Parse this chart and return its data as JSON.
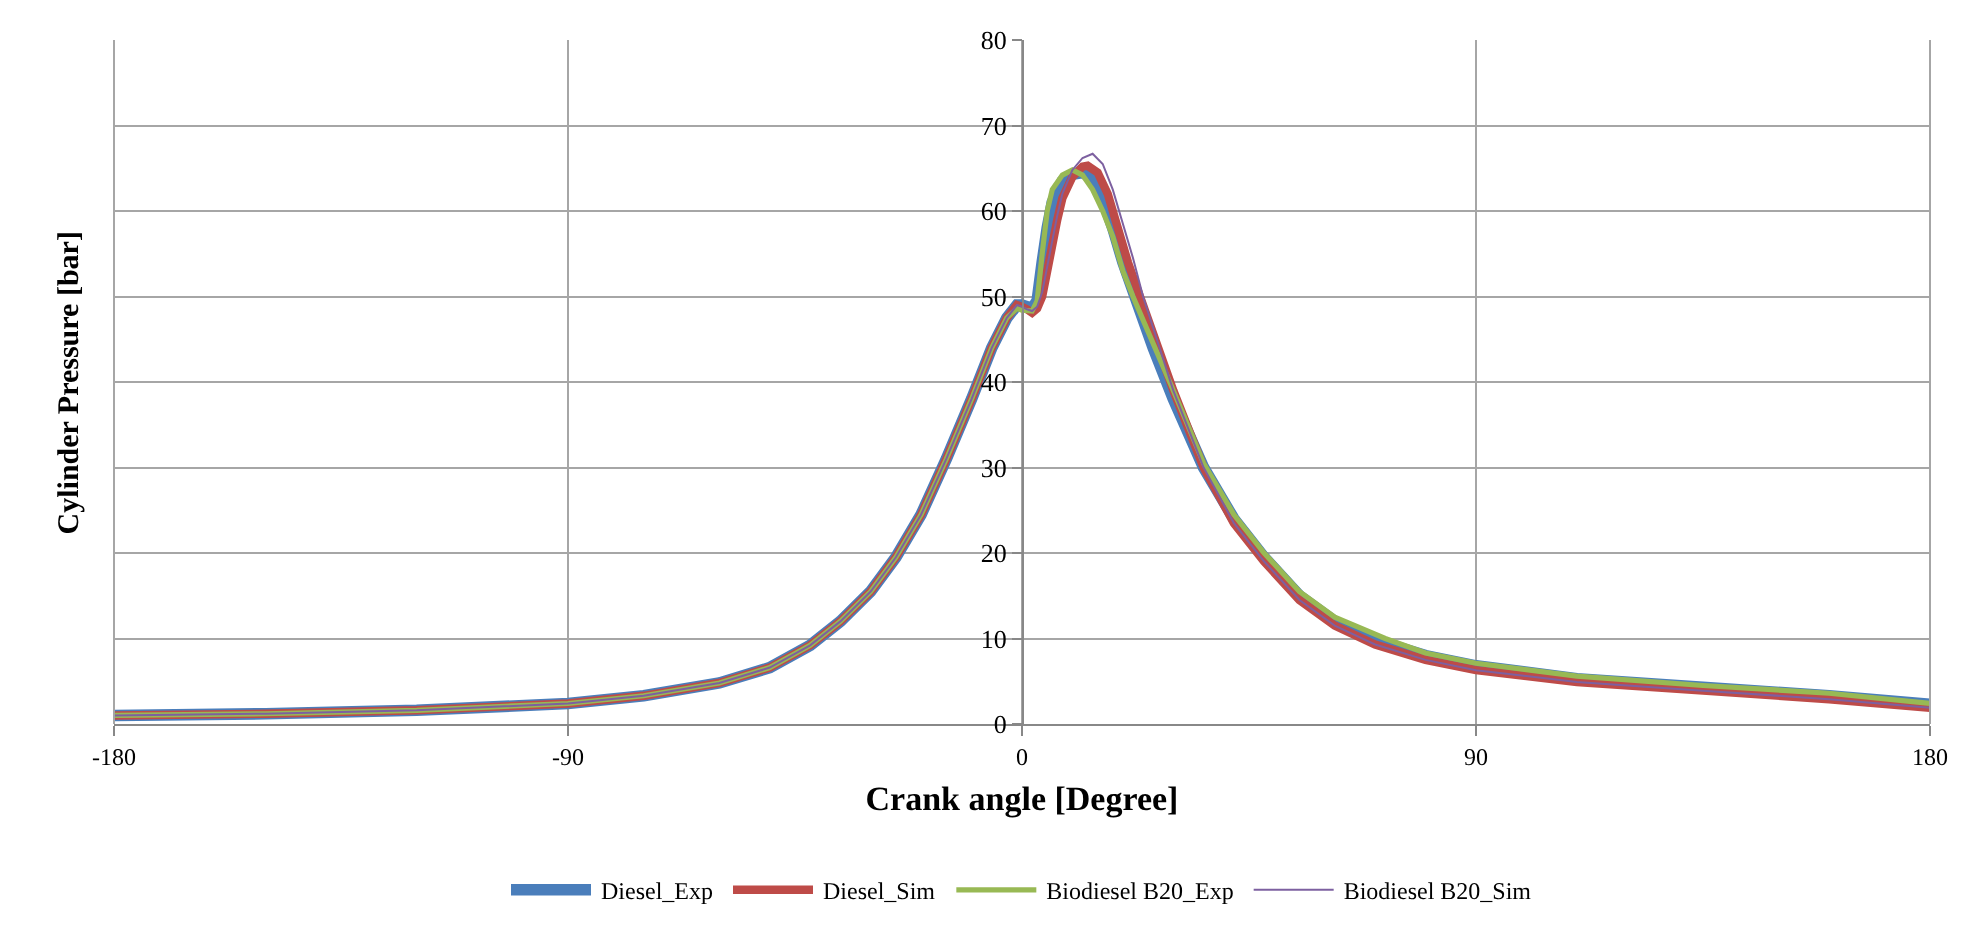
{
  "chart_data": {
    "type": "line",
    "xlabel": "Crank angle [Degree]",
    "ylabel": "Cylinder Pressure [bar]",
    "xlim": [
      -180,
      180
    ],
    "xticks": [
      -180,
      -90,
      0,
      90,
      180
    ],
    "ylim": [
      0,
      80
    ],
    "yticks": [
      0,
      10,
      20,
      30,
      40,
      50,
      60,
      70,
      80
    ],
    "grid": true,
    "legend": "bottom",
    "marker": "none",
    "line_style": "solid",
    "series": [
      {
        "name": "Diesel_Exp",
        "color": "#4a7ebb",
        "x": [
          -180,
          -150,
          -120,
          -90,
          -75,
          -60,
          -50,
          -42,
          -36,
          -30,
          -25,
          -20,
          -15,
          -10,
          -6,
          -3,
          -1,
          0,
          1,
          2,
          3,
          4,
          5,
          6,
          8,
          10,
          12,
          14,
          16,
          18,
          20,
          23,
          26,
          30,
          36,
          42,
          48,
          55,
          62,
          70,
          80,
          90,
          110,
          135,
          160,
          180
        ],
        "values": [
          1.0,
          1.2,
          1.6,
          2.4,
          3.3,
          4.8,
          6.6,
          9.2,
          12,
          15.5,
          19.5,
          24.5,
          31,
          38,
          44,
          47.5,
          49,
          49,
          48.8,
          48.6,
          49.5,
          54,
          58,
          61,
          63.5,
          64.3,
          64.5,
          63.8,
          61.5,
          58,
          54,
          49,
          44,
          38,
          30,
          24,
          19.5,
          15,
          12,
          9.8,
          8,
          6.8,
          5.3,
          4.3,
          3.3,
          2.3
        ]
      },
      {
        "name": "Diesel_Sim",
        "color": "#be4b48",
        "x": [
          -180,
          -150,
          -120,
          -90,
          -75,
          -60,
          -50,
          -42,
          -36,
          -30,
          -25,
          -20,
          -15,
          -10,
          -6,
          -3,
          -1,
          0,
          1,
          2,
          3,
          4,
          5,
          6,
          7,
          8,
          10,
          12,
          13,
          15,
          17,
          19,
          21,
          24,
          27,
          30,
          36,
          42,
          48,
          55,
          62,
          70,
          80,
          90,
          110,
          135,
          160,
          180
        ],
        "values": [
          1.0,
          1.2,
          1.6,
          2.4,
          3.3,
          4.8,
          6.6,
          9.2,
          12,
          15.5,
          19.5,
          24.5,
          31,
          38,
          44,
          47.5,
          49,
          48.8,
          48.5,
          48.1,
          48.6,
          50,
          53,
          56,
          59,
          61.5,
          64,
          65.2,
          65.3,
          64.5,
          62,
          58,
          54,
          49,
          44,
          39,
          30,
          23.5,
          19,
          14.5,
          11.5,
          9.3,
          7.5,
          6.3,
          4.9,
          3.9,
          2.9,
          1.9
        ]
      },
      {
        "name": "Biodiesel B20_Exp",
        "color": "#98b954",
        "x": [
          -180,
          -150,
          -120,
          -90,
          -75,
          -60,
          -50,
          -42,
          -36,
          -30,
          -25,
          -20,
          -15,
          -10,
          -6,
          -3,
          -1,
          0,
          2,
          3,
          4,
          5,
          6,
          8,
          10,
          12,
          14,
          16,
          18,
          20,
          22,
          26,
          30,
          36,
          42,
          48,
          55,
          62,
          72,
          80,
          90,
          110,
          135,
          160,
          180
        ],
        "values": [
          1.0,
          1.2,
          1.6,
          2.4,
          3.3,
          4.8,
          6.6,
          9.2,
          12,
          15.5,
          19.5,
          24.5,
          31,
          38,
          44,
          47.5,
          48.6,
          48.4,
          48.3,
          49.5,
          55,
          60,
          62.5,
          64.2,
          64.8,
          64.2,
          62.5,
          60,
          57,
          53,
          50,
          44.5,
          39,
          30.5,
          24.5,
          20,
          15.5,
          12.5,
          10,
          8.3,
          7.1,
          5.6,
          4.5,
          3.6,
          2.4
        ]
      },
      {
        "name": "Biodiesel B20_Sim",
        "color": "#7d60a0",
        "x": [
          -180,
          -150,
          -120,
          -90,
          -75,
          -60,
          -50,
          -42,
          -36,
          -30,
          -25,
          -20,
          -15,
          -10,
          -6,
          -3,
          -1,
          0,
          1,
          2,
          3,
          4,
          5,
          6,
          7,
          8,
          10,
          12,
          14,
          16,
          18,
          20,
          22,
          24,
          27,
          30,
          36,
          42,
          48,
          55,
          62,
          70,
          80,
          90,
          110,
          135,
          160,
          180
        ],
        "values": [
          1.0,
          1.2,
          1.6,
          2.4,
          3.3,
          4.8,
          6.6,
          9.2,
          12,
          15.5,
          19.5,
          24.5,
          31,
          38,
          44,
          47.5,
          49,
          48.8,
          48.5,
          48.3,
          48.8,
          50.5,
          53.5,
          56.5,
          59.5,
          62,
          64.8,
          66.2,
          66.7,
          65.5,
          62.5,
          58.5,
          54.5,
          50,
          44.5,
          39,
          30,
          23.5,
          19,
          14.5,
          11.5,
          9.3,
          7.5,
          6.3,
          4.9,
          3.9,
          2.9,
          1.9
        ]
      }
    ]
  }
}
